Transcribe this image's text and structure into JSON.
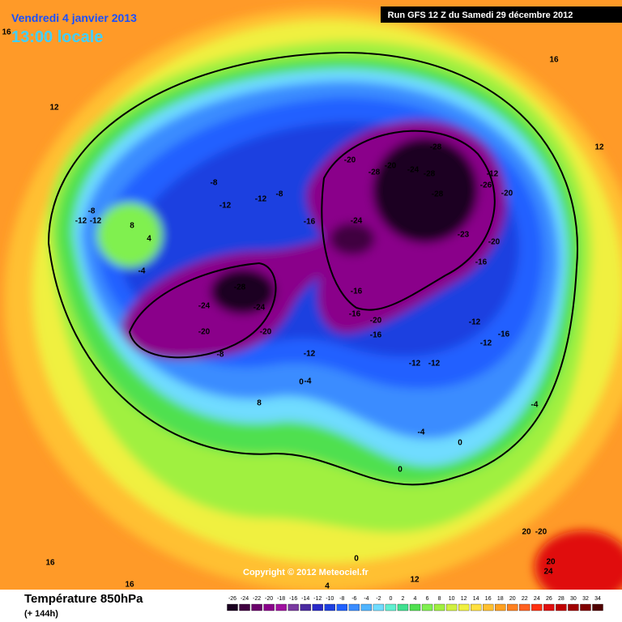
{
  "header": {
    "date": "Vendredi 4 janvier 2013",
    "time": "13:00 locale",
    "run": "Run GFS 12 Z du Samedi 29 décembre 2012"
  },
  "footer": {
    "title": "Température 850hPa",
    "lead": "(+ 144h)",
    "copyright": "Copyright © 2012 Meteociel.fr"
  },
  "legend": {
    "labels": [
      -26,
      -24,
      -22,
      -20,
      -18,
      -16,
      -14,
      -12,
      -10,
      -8,
      -6,
      -4,
      -2,
      0,
      2,
      4,
      6,
      8,
      10,
      12,
      14,
      16,
      18,
      20,
      22,
      24,
      26,
      28,
      30,
      32,
      34
    ],
    "colors": [
      "#1a0020",
      "#400040",
      "#6a006a",
      "#8a008a",
      "#a010a0",
      "#7a3aa0",
      "#4a2aa0",
      "#2a2ac8",
      "#1e40e0",
      "#2060ff",
      "#3a8cff",
      "#50b4ff",
      "#70dcff",
      "#60f0d0",
      "#40e090",
      "#50e050",
      "#80f050",
      "#a0f040",
      "#d0f040",
      "#f0f040",
      "#ffe040",
      "#ffc030",
      "#ffa020",
      "#ff8020",
      "#ff6020",
      "#ff3010",
      "#e01010",
      "#c00000",
      "#a00000",
      "#800000",
      "#500000"
    ]
  },
  "map": {
    "labels": [
      "-28",
      "-24",
      "-24",
      "-20",
      "-20",
      "-8",
      "-28",
      "-28",
      "-20",
      "-20",
      "-24",
      "-28",
      "-28",
      "-24",
      "-23",
      "-16",
      "-12",
      "-8",
      "-12",
      "-16",
      "-16",
      "-20",
      "-16",
      "-12",
      "-16",
      "-12",
      "-12",
      "-12",
      "-12",
      "-4",
      "0",
      "-4",
      "0",
      "0",
      "-4",
      "4",
      "-4",
      "-12",
      "-12",
      "-8",
      "8",
      "12",
      "16",
      "16",
      "12",
      "20",
      "-20",
      "20",
      "24",
      "16",
      "16",
      "12",
      "4",
      "0",
      "8",
      "-8",
      "-12",
      "-20",
      "-26",
      "-20",
      "-16"
    ]
  }
}
